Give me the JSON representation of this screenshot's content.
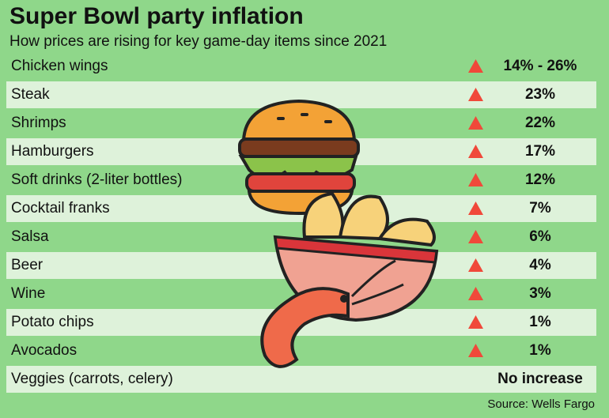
{
  "header": {
    "title": "Super Bowl party inflation",
    "subtitle": "How prices are rising for key game-day items since 2021"
  },
  "table": {
    "rows": [
      [
        "Chicken wings",
        "14% - 26%"
      ],
      [
        "Steak",
        "23%"
      ],
      [
        "Shrimps",
        "22%"
      ],
      [
        "Hamburgers",
        "17%"
      ],
      [
        "Soft drinks (2-liter bottles)",
        "12%"
      ],
      [
        "Cocktail franks",
        "7%"
      ],
      [
        "Salsa",
        "6%"
      ],
      [
        "Beer",
        "4%"
      ],
      [
        "Wine",
        "3%"
      ],
      [
        "Potato chips",
        "1%"
      ],
      [
        "Avocados",
        "1%"
      ],
      [
        "Veggies (carrots, celery)",
        "No increase"
      ]
    ]
  },
  "source": "Source: Wells Fargo"
}
